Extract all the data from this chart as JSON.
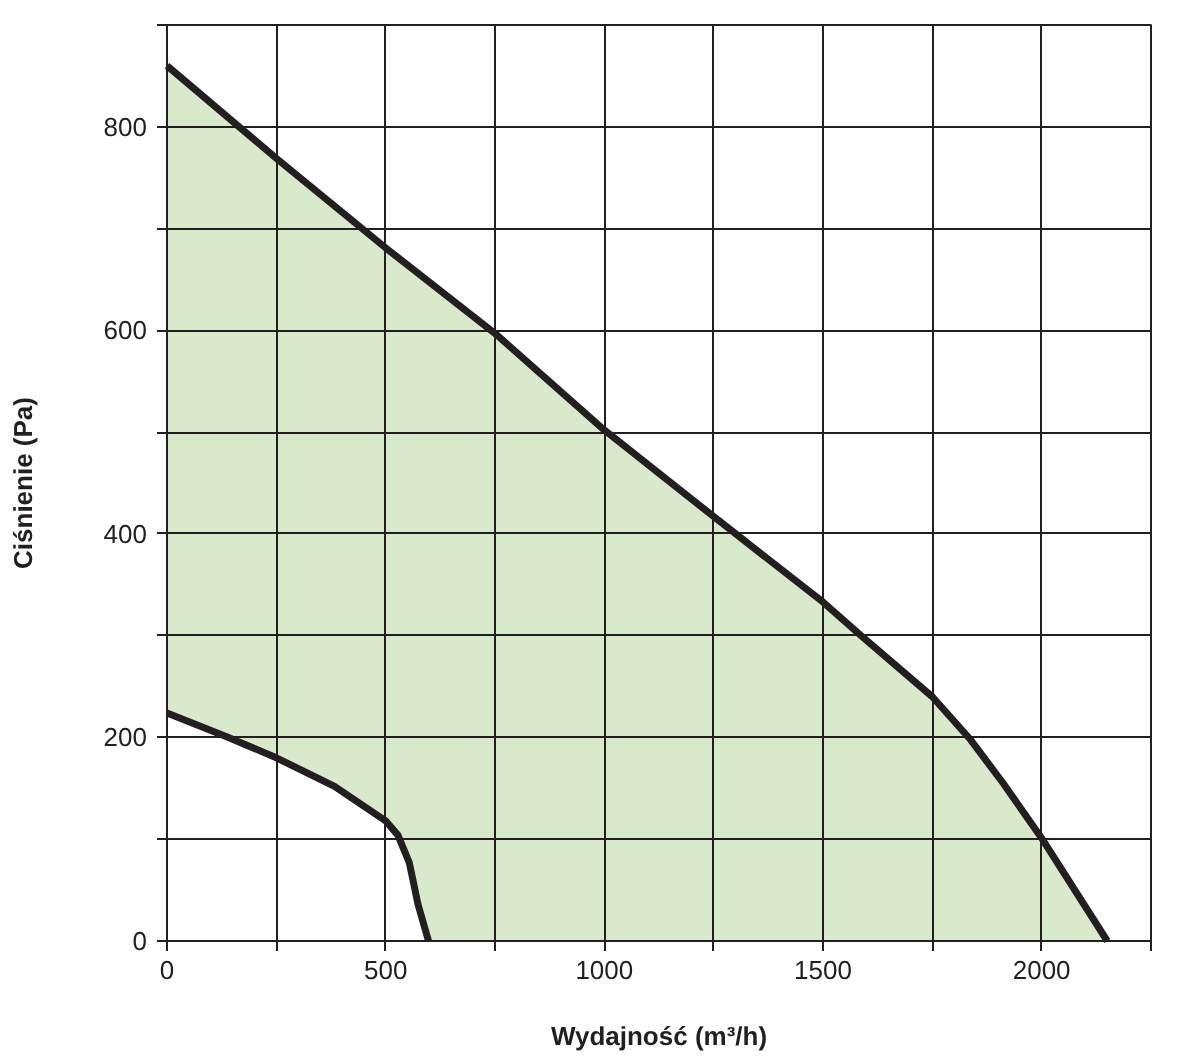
{
  "chart_data": {
    "type": "area",
    "xlabel": "Wydajność (m³/h)",
    "ylabel": "Ciśnienie (Pa)",
    "xlim": [
      0,
      2250
    ],
    "ylim": [
      0,
      900
    ],
    "xticks": [
      0,
      {
        "value": 250,
        "label": null
      },
      500,
      {
        "value": 750,
        "label": null
      },
      1000,
      {
        "value": 1250,
        "label": null
      },
      1500,
      {
        "value": 1750,
        "label": null
      },
      2000,
      {
        "value": 2250,
        "label": null
      }
    ],
    "yticks": [
      0,
      {
        "value": 100,
        "label": null
      },
      200,
      {
        "value": 300,
        "label": null
      },
      400,
      {
        "value": 500,
        "label": null
      },
      600,
      {
        "value": 700,
        "label": null
      },
      800,
      {
        "value": 900,
        "label": null
      }
    ],
    "grid": true,
    "series": [
      {
        "color": "#d9eacc",
        "x": [
          0,
          250,
          500,
          750,
          1000,
          1250,
          1500,
          1587,
          1750,
          1835,
          1912,
          2000,
          2150
        ],
        "values": [
          860,
          769,
          681,
          597,
          502,
          417,
          333,
          300,
          240,
          199,
          155,
          101,
          0
        ]
      },
      {
        "color": "#ffffff",
        "x": [
          0,
          135,
          250,
          383,
          500,
          528,
          554,
          574,
          598
        ],
        "values": [
          224,
          201,
          180,
          152,
          118,
          104,
          77,
          36,
          0
        ]
      }
    ]
  }
}
